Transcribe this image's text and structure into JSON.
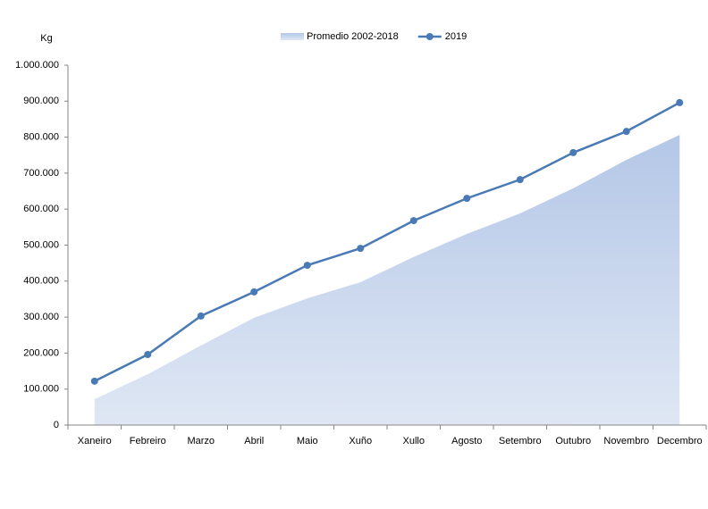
{
  "chart_data": {
    "type": "area-line",
    "y_axis_label": "Kg",
    "categories": [
      "Xaneiro",
      "Febreiro",
      "Marzo",
      "Abril",
      "Maio",
      "Xuño",
      "Xullo",
      "Agosto",
      "Setembro",
      "Outubro",
      "Novembro",
      "Decembro"
    ],
    "series": [
      {
        "name": "Promedio 2002-2018",
        "kind": "area",
        "color": "#b4c7e7",
        "values": [
          72000,
          141000,
          221000,
          298000,
          352000,
          397000,
          467000,
          531000,
          588000,
          658000,
          737000,
          806000
        ]
      },
      {
        "name": "2019",
        "kind": "line",
        "color": "#4a7ab5",
        "values": [
          122000,
          196000,
          303000,
          370000,
          444000,
          491000,
          568000,
          630000,
          682000,
          757000,
          816000,
          896000
        ]
      }
    ],
    "ylim": [
      0,
      1000000
    ],
    "yticks": [
      0,
      {
        "value": 100000,
        "label": "100.000"
      },
      {
        "value": 200000,
        "label": "200.000"
      },
      {
        "value": 300000,
        "label": "300.000"
      },
      {
        "value": 400000,
        "label": "400.000"
      },
      {
        "value": 500000,
        "label": "500.000"
      },
      {
        "value": 600000,
        "label": "600.000"
      },
      {
        "value": 700000,
        "label": "700.000"
      },
      {
        "value": 800000,
        "label": "800.000"
      },
      {
        "value": 900000,
        "label": "900.000"
      },
      {
        "value": 1000000,
        "label": "1.000.000"
      }
    ],
    "grid": false
  }
}
